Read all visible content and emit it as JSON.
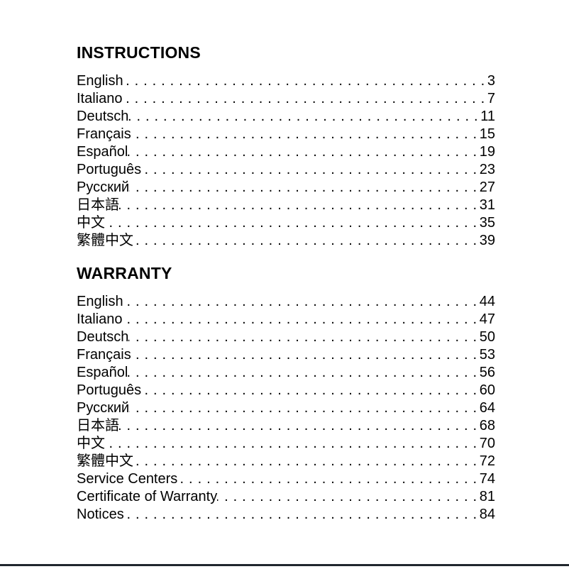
{
  "page": {
    "background": "#ffffff",
    "text_color": "#000000",
    "bottom_rule_color": "#20262d"
  },
  "sections": [
    {
      "title": "INSTRUCTIONS",
      "entries": [
        {
          "label": "English",
          "page": "3"
        },
        {
          "label": "Italiano",
          "page": "7"
        },
        {
          "label": "Deutsch",
          "page": "11"
        },
        {
          "label": "Français",
          "page": "15"
        },
        {
          "label": "Español",
          "page": "19"
        },
        {
          "label": "Português",
          "page": "23"
        },
        {
          "label": "Русский",
          "page": "27"
        },
        {
          "label": "日本語",
          "page": "31"
        },
        {
          "label": "中文",
          "page": "35"
        },
        {
          "label": "繁體中文",
          "page": "39"
        }
      ]
    },
    {
      "title": "WARRANTY",
      "entries": [
        {
          "label": "English",
          "page": "44"
        },
        {
          "label": "Italiano",
          "page": "47"
        },
        {
          "label": "Deutsch",
          "page": "50"
        },
        {
          "label": "Français",
          "page": "53"
        },
        {
          "label": "Español",
          "page": "56"
        },
        {
          "label": "Português",
          "page": "60"
        },
        {
          "label": "Русский",
          "page": "64"
        },
        {
          "label": "日本語",
          "page": "68"
        },
        {
          "label": "中文",
          "page": "70"
        },
        {
          "label": "繁體中文",
          "page": "72"
        },
        {
          "label": "Service Centers",
          "page": "74"
        },
        {
          "label": "Certificate of Warranty",
          "page": "81"
        },
        {
          "label": "Notices",
          "page": "84"
        }
      ]
    }
  ]
}
